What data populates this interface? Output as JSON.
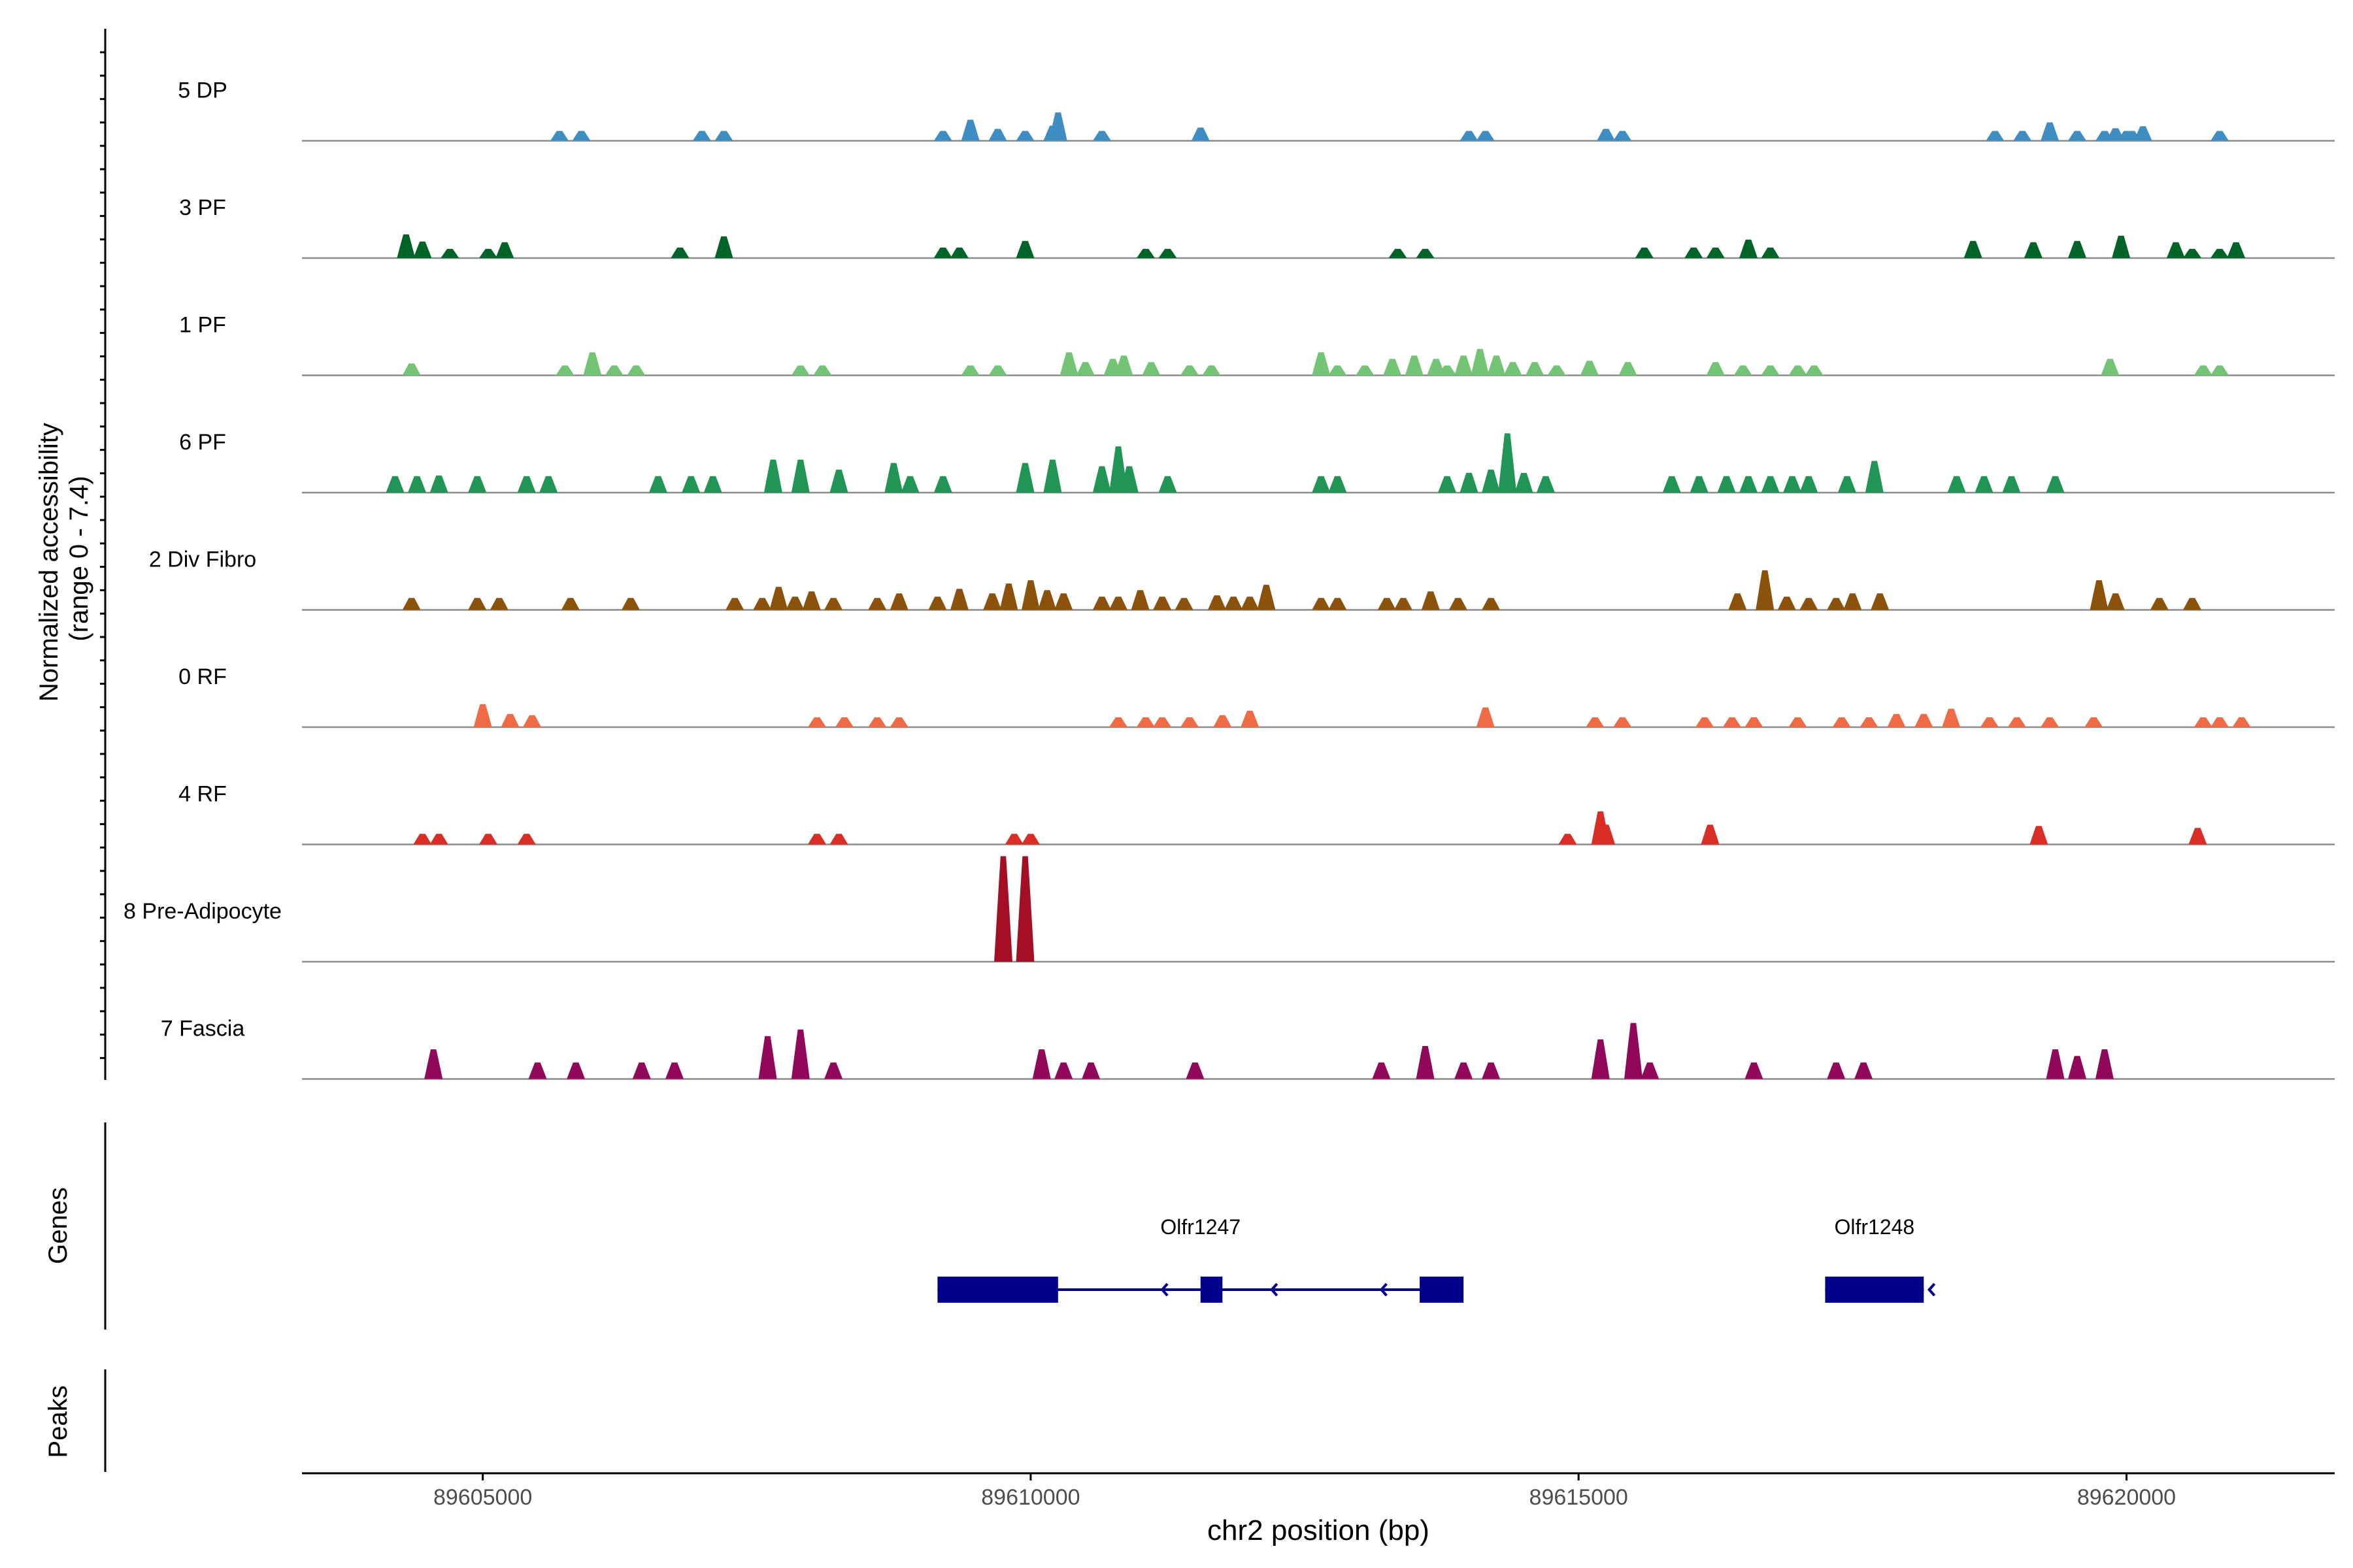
{
  "chart_data": {
    "type": "area",
    "title": "",
    "accessibility_axis_label": [
      "Normalized accessibility",
      "(range 0 - 7.4)"
    ],
    "range_max": 7.4,
    "xlabel": "chr2 position (bp)",
    "xlim": [
      89603350,
      89621900
    ],
    "x_ticks": [
      89605000,
      89610000,
      89615000,
      89620000
    ],
    "x_tick_labels": [
      "89605000",
      "89610000",
      "89615000",
      "89620000"
    ],
    "tracks": [
      {
        "name": "5 DP",
        "color": "#3e8ec4",
        "peaks": [
          [
            89605700,
            1.5
          ],
          [
            89605900,
            1.5
          ],
          [
            89607000,
            1.5
          ],
          [
            89607200,
            1.5
          ],
          [
            89609200,
            1.5
          ],
          [
            89609450,
            3.2
          ],
          [
            89609700,
            1.8
          ],
          [
            89609950,
            1.5
          ],
          [
            89610200,
            2.3
          ],
          [
            89610250,
            4.3
          ],
          [
            89610650,
            1.5
          ],
          [
            89611550,
            2.0
          ],
          [
            89614000,
            1.5
          ],
          [
            89614150,
            1.5
          ],
          [
            89615250,
            1.8
          ],
          [
            89615400,
            1.5
          ],
          [
            89618800,
            1.5
          ],
          [
            89619050,
            1.5
          ],
          [
            89619550,
            1.5
          ],
          [
            89619800,
            1.5
          ],
          [
            89620150,
            2.2
          ],
          [
            89619900,
            1.9
          ],
          [
            89619300,
            2.8
          ],
          [
            89620000,
            1.5
          ],
          [
            89620050,
            1.5
          ],
          [
            89620850,
            1.5
          ]
        ]
      },
      {
        "name": "3 PF",
        "color": "#006428",
        "peaks": [
          [
            89604300,
            3.6
          ],
          [
            89604450,
            2.5
          ],
          [
            89604700,
            1.4
          ],
          [
            89605050,
            1.4
          ],
          [
            89605200,
            2.4
          ],
          [
            89606800,
            1.6
          ],
          [
            89607200,
            3.3
          ],
          [
            89609200,
            1.6
          ],
          [
            89609350,
            1.6
          ],
          [
            89609950,
            2.6
          ],
          [
            89611050,
            1.4
          ],
          [
            89611250,
            1.4
          ],
          [
            89613350,
            1.4
          ],
          [
            89613600,
            1.4
          ],
          [
            89615600,
            1.6
          ],
          [
            89616050,
            1.6
          ],
          [
            89616250,
            1.6
          ],
          [
            89616550,
            2.8
          ],
          [
            89616750,
            1.6
          ],
          [
            89618600,
            2.6
          ],
          [
            89619150,
            2.4
          ],
          [
            89619550,
            2.6
          ],
          [
            89619950,
            3.4
          ],
          [
            89620450,
            2.4
          ],
          [
            89620600,
            1.4
          ],
          [
            89620850,
            1.4
          ],
          [
            89621000,
            2.4
          ]
        ]
      },
      {
        "name": "1 PF",
        "color": "#74c476",
        "peaks": [
          [
            89604350,
            1.8
          ],
          [
            89605750,
            1.5
          ],
          [
            89606000,
            3.5
          ],
          [
            89606200,
            1.5
          ],
          [
            89606400,
            1.5
          ],
          [
            89607900,
            1.5
          ],
          [
            89608100,
            1.5
          ],
          [
            89609450,
            1.5
          ],
          [
            89609700,
            1.5
          ],
          [
            89610350,
            3.5
          ],
          [
            89610500,
            2.0
          ],
          [
            89610750,
            2.5
          ],
          [
            89610850,
            3.0
          ],
          [
            89611100,
            2.0
          ],
          [
            89611450,
            1.5
          ],
          [
            89611650,
            1.5
          ],
          [
            89612650,
            3.5
          ],
          [
            89612800,
            1.5
          ],
          [
            89613050,
            1.5
          ],
          [
            89613300,
            2.5
          ],
          [
            89613500,
            3.0
          ],
          [
            89613700,
            2.5
          ],
          [
            89613800,
            1.5
          ],
          [
            89613950,
            3.0
          ],
          [
            89614100,
            4.0
          ],
          [
            89614250,
            3.0
          ],
          [
            89614400,
            2.0
          ],
          [
            89614600,
            2.0
          ],
          [
            89614800,
            1.5
          ],
          [
            89615100,
            2.2
          ],
          [
            89615450,
            2.0
          ],
          [
            89616250,
            2.0
          ],
          [
            89616500,
            1.5
          ],
          [
            89616750,
            1.5
          ],
          [
            89617000,
            1.5
          ],
          [
            89617150,
            1.5
          ],
          [
            89619850,
            2.5
          ],
          [
            89620700,
            1.5
          ],
          [
            89620850,
            1.5
          ]
        ]
      },
      {
        "name": "6 PF",
        "color": "#209555",
        "peaks": [
          [
            89604200,
            2.5
          ],
          [
            89604400,
            2.5
          ],
          [
            89604600,
            2.6
          ],
          [
            89604950,
            2.5
          ],
          [
            89605400,
            2.5
          ],
          [
            89605600,
            2.5
          ],
          [
            89606600,
            2.5
          ],
          [
            89606900,
            2.5
          ],
          [
            89607100,
            2.5
          ],
          [
            89607650,
            5.0
          ],
          [
            89607900,
            5.0
          ],
          [
            89608250,
            3.5
          ],
          [
            89608750,
            4.5
          ],
          [
            89608900,
            2.5
          ],
          [
            89609200,
            2.5
          ],
          [
            89609950,
            4.5
          ],
          [
            89610200,
            5.0
          ],
          [
            89610650,
            4.0
          ],
          [
            89610800,
            7.0
          ],
          [
            89610900,
            4.0
          ],
          [
            89611250,
            2.5
          ],
          [
            89612650,
            2.5
          ],
          [
            89612800,
            2.5
          ],
          [
            89613800,
            2.5
          ],
          [
            89614000,
            3.0
          ],
          [
            89614200,
            3.5
          ],
          [
            89614350,
            9.0
          ],
          [
            89614500,
            3.0
          ],
          [
            89614700,
            2.5
          ],
          [
            89615850,
            2.5
          ],
          [
            89616100,
            2.5
          ],
          [
            89616350,
            2.5
          ],
          [
            89616550,
            2.5
          ],
          [
            89616750,
            2.5
          ],
          [
            89616950,
            2.5
          ],
          [
            89617100,
            2.5
          ],
          [
            89617450,
            2.5
          ],
          [
            89617700,
            4.8
          ],
          [
            89618450,
            2.5
          ],
          [
            89618700,
            2.5
          ],
          [
            89618950,
            2.5
          ],
          [
            89619350,
            2.5
          ]
        ]
      },
      {
        "name": "2 Div Fibro",
        "color": "#8c510a",
        "peaks": [
          [
            89604350,
            1.8
          ],
          [
            89604950,
            1.8
          ],
          [
            89605150,
            1.8
          ],
          [
            89605800,
            1.8
          ],
          [
            89606350,
            1.8
          ],
          [
            89607300,
            1.8
          ],
          [
            89607550,
            1.8
          ],
          [
            89607700,
            3.5
          ],
          [
            89607850,
            2.0
          ],
          [
            89608000,
            2.8
          ],
          [
            89608200,
            1.8
          ],
          [
            89608600,
            1.8
          ],
          [
            89608800,
            2.5
          ],
          [
            89609150,
            2.0
          ],
          [
            89609350,
            3.2
          ],
          [
            89609650,
            2.5
          ],
          [
            89609800,
            4.0
          ],
          [
            89610000,
            4.5
          ],
          [
            89610150,
            3.0
          ],
          [
            89610300,
            2.5
          ],
          [
            89610650,
            2.0
          ],
          [
            89610800,
            2.0
          ],
          [
            89611000,
            3.0
          ],
          [
            89611200,
            2.0
          ],
          [
            89611400,
            1.8
          ],
          [
            89611700,
            2.2
          ],
          [
            89611850,
            2.0
          ],
          [
            89612000,
            2.0
          ],
          [
            89612150,
            3.8
          ],
          [
            89612650,
            1.8
          ],
          [
            89612800,
            1.8
          ],
          [
            89613250,
            1.8
          ],
          [
            89613400,
            1.8
          ],
          [
            89613650,
            2.8
          ],
          [
            89613900,
            1.8
          ],
          [
            89614200,
            1.8
          ],
          [
            89616450,
            2.5
          ],
          [
            89616700,
            6.0
          ],
          [
            89616900,
            2.0
          ],
          [
            89617100,
            1.8
          ],
          [
            89617350,
            1.8
          ],
          [
            89617500,
            2.5
          ],
          [
            89617750,
            2.5
          ],
          [
            89619750,
            4.5
          ],
          [
            89619900,
            2.5
          ],
          [
            89620300,
            1.8
          ],
          [
            89620600,
            1.8
          ]
        ]
      },
      {
        "name": "0 RF",
        "color": "#ef6b45",
        "peaks": [
          [
            89605000,
            3.5
          ],
          [
            89605250,
            2.0
          ],
          [
            89605450,
            1.8
          ],
          [
            89608050,
            1.5
          ],
          [
            89608300,
            1.5
          ],
          [
            89608600,
            1.5
          ],
          [
            89608800,
            1.5
          ],
          [
            89610800,
            1.5
          ],
          [
            89611050,
            1.5
          ],
          [
            89611200,
            1.5
          ],
          [
            89611450,
            1.5
          ],
          [
            89611750,
            1.8
          ],
          [
            89612000,
            2.5
          ],
          [
            89614150,
            3.0
          ],
          [
            89615150,
            1.5
          ],
          [
            89615400,
            1.5
          ],
          [
            89616150,
            1.5
          ],
          [
            89616400,
            1.5
          ],
          [
            89616600,
            1.5
          ],
          [
            89617000,
            1.5
          ],
          [
            89617400,
            1.5
          ],
          [
            89617650,
            1.5
          ],
          [
            89617900,
            2.0
          ],
          [
            89618150,
            2.0
          ],
          [
            89618400,
            2.8
          ],
          [
            89618750,
            1.5
          ],
          [
            89619000,
            1.5
          ],
          [
            89619300,
            1.5
          ],
          [
            89619700,
            1.5
          ],
          [
            89620700,
            1.5
          ],
          [
            89620850,
            1.5
          ],
          [
            89621050,
            1.5
          ]
        ]
      },
      {
        "name": "4 RF",
        "color": "#d92d25",
        "peaks": [
          [
            89604450,
            1.6
          ],
          [
            89604600,
            1.6
          ],
          [
            89605050,
            1.6
          ],
          [
            89605400,
            1.6
          ],
          [
            89608050,
            1.6
          ],
          [
            89608250,
            1.6
          ],
          [
            89609850,
            1.6
          ],
          [
            89610000,
            1.6
          ],
          [
            89614900,
            1.6
          ],
          [
            89615200,
            5.0
          ],
          [
            89615250,
            3.0
          ],
          [
            89616200,
            3.0
          ],
          [
            89619200,
            2.8
          ],
          [
            89620650,
            2.5
          ]
        ]
      },
      {
        "name": "8 Pre-Adipocyte",
        "color": "#a50f25",
        "peaks": [
          [
            89609750,
            16.0
          ],
          [
            89609950,
            16.0
          ]
        ]
      },
      {
        "name": "7 Fascia",
        "color": "#91075a",
        "peaks": [
          [
            89604550,
            4.5
          ],
          [
            89605500,
            2.5
          ],
          [
            89605850,
            2.5
          ],
          [
            89606450,
            2.5
          ],
          [
            89606750,
            2.5
          ],
          [
            89607600,
            6.5
          ],
          [
            89607900,
            7.5
          ],
          [
            89608200,
            2.5
          ],
          [
            89610100,
            4.5
          ],
          [
            89610300,
            2.5
          ],
          [
            89610550,
            2.5
          ],
          [
            89611500,
            2.5
          ],
          [
            89613200,
            2.5
          ],
          [
            89613600,
            5.0
          ],
          [
            89613950,
            2.5
          ],
          [
            89614200,
            2.5
          ],
          [
            89615200,
            6.0
          ],
          [
            89615500,
            8.5
          ],
          [
            89615650,
            2.5
          ],
          [
            89616600,
            2.5
          ],
          [
            89617350,
            2.5
          ],
          [
            89617600,
            2.5
          ],
          [
            89619350,
            4.5
          ],
          [
            89619550,
            3.5
          ],
          [
            89619800,
            4.5
          ]
        ]
      }
    ],
    "genes_axis_label": "Genes",
    "peaks_axis_label": "Peaks",
    "genes": [
      {
        "name": "Olfr1247",
        "color": "#00008b",
        "strand": "-",
        "start": 89609150,
        "end": 89613900,
        "label_pos": 89611550,
        "exons": [
          [
            89609150,
            89610250
          ],
          [
            89611550,
            89611750
          ],
          [
            89613550,
            89613950
          ]
        ],
        "arrows": [
          89611200,
          89612200,
          89613200
        ]
      },
      {
        "name": "Olfr1248",
        "color": "#00008b",
        "strand": "-",
        "start": 89617250,
        "end": 89618150,
        "label_pos": 89617700,
        "exons": [
          [
            89617250,
            89618150
          ]
        ],
        "arrows": [
          89618200
        ]
      }
    ]
  }
}
